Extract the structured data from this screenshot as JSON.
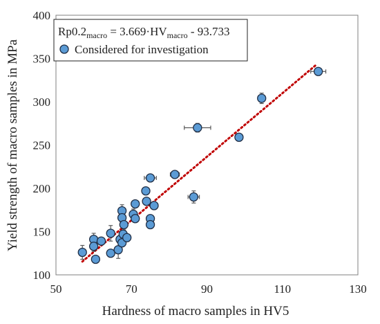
{
  "chart_data": {
    "type": "scatter",
    "xlabel": "Hardness of macro samples in HV5",
    "ylabel": "Yield strength of macro samples in MPa",
    "xlim": [
      50,
      130
    ],
    "ylim": [
      100,
      400
    ],
    "xticks": [
      "50",
      "70",
      "90",
      "110",
      "130"
    ],
    "yticks": [
      "100",
      "150",
      "200",
      "250",
      "300",
      "350",
      "400"
    ],
    "grid": false,
    "legend_position": "top-left",
    "equation_prefix": "Rp0.2",
    "equation_sub": "macro",
    "equation_middle": " = 3.669·HV",
    "equation_suffix": " - 93.733",
    "legend_label": "Considered for investigation",
    "trendline": {
      "slope": 3.669,
      "intercept": -93.733,
      "x_range": [
        57,
        119
      ],
      "color": "#c00000"
    },
    "marker_fill": "#5b9bd5",
    "marker_edge": "#1f2d44",
    "points": [
      {
        "x": 57.0,
        "y": 126,
        "xerr": 0.4,
        "yerr": 8
      },
      {
        "x": 60.0,
        "y": 141,
        "xerr": 0.4,
        "yerr": 7
      },
      {
        "x": 60.0,
        "y": 133,
        "xerr": 0.4,
        "yerr": 6
      },
      {
        "x": 60.5,
        "y": 118,
        "xerr": 0.4,
        "yerr": 3
      },
      {
        "x": 62.0,
        "y": 139,
        "xerr": 0.5,
        "yerr": 4
      },
      {
        "x": 64.5,
        "y": 148,
        "xerr": 0.5,
        "yerr": 9
      },
      {
        "x": 64.5,
        "y": 125,
        "xerr": 0.5,
        "yerr": 4
      },
      {
        "x": 66.5,
        "y": 129,
        "xerr": 0.5,
        "yerr": 10
      },
      {
        "x": 67.5,
        "y": 174,
        "xerr": 0.5,
        "yerr": 7
      },
      {
        "x": 67.5,
        "y": 166,
        "xerr": 0.5,
        "yerr": 5
      },
      {
        "x": 67.0,
        "y": 141,
        "xerr": 0.4,
        "yerr": 4
      },
      {
        "x": 67.5,
        "y": 137,
        "xerr": 0.4,
        "yerr": 4
      },
      {
        "x": 68.0,
        "y": 158,
        "xerr": 0.5,
        "yerr": 6
      },
      {
        "x": 67.8,
        "y": 147,
        "xerr": 0.5,
        "yerr": 4
      },
      {
        "x": 68.8,
        "y": 143,
        "xerr": 0.8,
        "yerr": 3
      },
      {
        "x": 70.5,
        "y": 170,
        "xerr": 0.6,
        "yerr": 6
      },
      {
        "x": 71.0,
        "y": 182,
        "xerr": 0.6,
        "yerr": 4
      },
      {
        "x": 71.0,
        "y": 165,
        "xerr": 0.6,
        "yerr": 4
      },
      {
        "x": 73.8,
        "y": 197,
        "xerr": 0.5,
        "yerr": 4
      },
      {
        "x": 74.0,
        "y": 185,
        "xerr": 0.8,
        "yerr": 4
      },
      {
        "x": 75.0,
        "y": 212,
        "xerr": 1.6,
        "yerr": 4
      },
      {
        "x": 75.0,
        "y": 165,
        "xerr": 0.5,
        "yerr": 4
      },
      {
        "x": 75.0,
        "y": 158,
        "xerr": 0.5,
        "yerr": 4
      },
      {
        "x": 76.0,
        "y": 180,
        "xerr": 0.8,
        "yerr": 4
      },
      {
        "x": 81.5,
        "y": 216,
        "xerr": 1.2,
        "yerr": 4
      },
      {
        "x": 86.5,
        "y": 190,
        "xerr": 1.5,
        "yerr": 7
      },
      {
        "x": 87.5,
        "y": 270,
        "xerr": 3.5,
        "yerr": 5
      },
      {
        "x": 98.5,
        "y": 259,
        "xerr": 1.0,
        "yerr": 3
      },
      {
        "x": 104.5,
        "y": 304,
        "xerr": 0.5,
        "yerr": 6
      },
      {
        "x": 119.5,
        "y": 335,
        "xerr": 2.0,
        "yerr": 4
      }
    ]
  }
}
